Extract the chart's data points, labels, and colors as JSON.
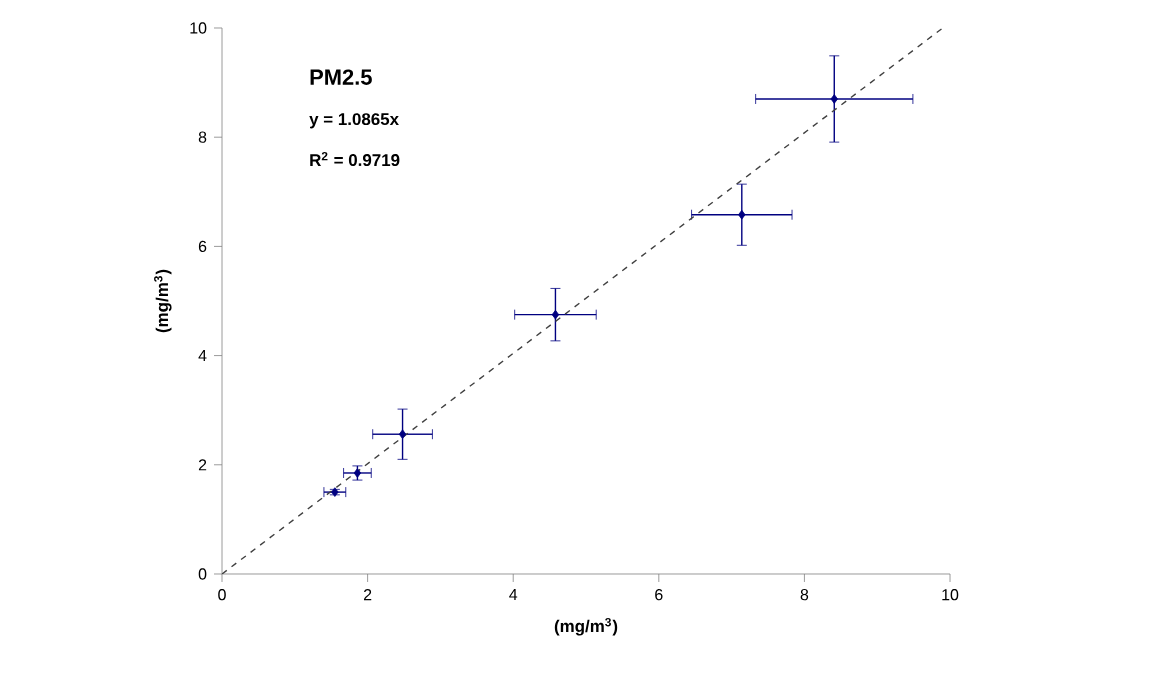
{
  "chart_data": {
    "type": "scatter",
    "xlabel": "(mg/m$^{3}$)",
    "ylabel": "(mg/m$^{3}$)",
    "annotations": [
      "**PM2.5**",
      "y = 1.0865x",
      "R$^{2}$ = 0.9719"
    ],
    "series": [
      {
        "color": "#000080",
        "x": [
          1.55,
          1.86,
          2.48,
          4.58,
          7.14,
          8.41
        ],
        "values": [
          1.5,
          1.85,
          2.56,
          4.75,
          6.58,
          8.7
        ],
        "xerrors": [
          0.15,
          0.19,
          0.41,
          0.56,
          0.69,
          1.08
        ],
        "errors": [
          0.05,
          0.13,
          0.46,
          0.48,
          0.56,
          0.79
        ],
        "marker": "diamond"
      },
      {
        "type": "line",
        "color": "#404040",
        "x": [
          0,
          9.9
        ],
        "values": [
          0,
          10
        ],
        "line_style": "dashed",
        "marker": "none"
      }
    ],
    "xlim": [
      0,
      10
    ],
    "ylim": [
      0,
      10
    ],
    "xticks": [
      0,
      2,
      4,
      6,
      8,
      10
    ],
    "yticks": [
      0,
      2,
      4,
      6,
      8,
      10
    ]
  }
}
